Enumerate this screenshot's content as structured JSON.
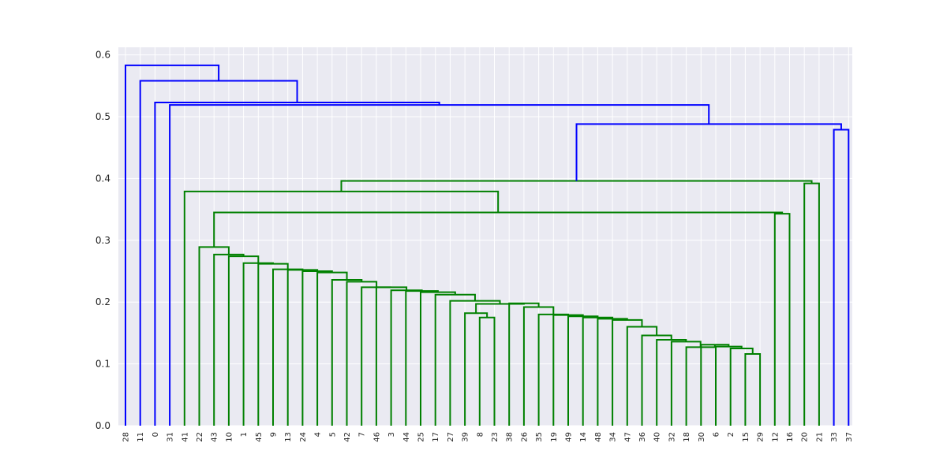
{
  "chart_data": {
    "type": "dendrogram",
    "title": "",
    "xlabel": "",
    "ylabel": "",
    "ylim": [
      0,
      0.61
    ],
    "yticks": [
      "0.0",
      "0.1",
      "0.2",
      "0.3",
      "0.4",
      "0.5",
      "0.6"
    ],
    "grid": true,
    "leaves": [
      "28",
      "11",
      "0",
      "31",
      "41",
      "22",
      "43",
      "10",
      "1",
      "45",
      "9",
      "13",
      "24",
      "4",
      "5",
      "42",
      "7",
      "46",
      "3",
      "44",
      "25",
      "17",
      "27",
      "39",
      "8",
      "23",
      "38",
      "26",
      "35",
      "19",
      "49",
      "14",
      "48",
      "34",
      "47",
      "36",
      "40",
      "32",
      "18",
      "30",
      "6",
      "2",
      "15",
      "29",
      "12",
      "16",
      "20",
      "21",
      "33",
      "37"
    ],
    "colors": {
      "green": "#008000",
      "blue": "#0000ff",
      "background": "#eaeaf2",
      "grid": "#ffffff"
    },
    "merges": [
      {
        "a": "29",
        "b": "15",
        "h": 0.116,
        "color": "green"
      },
      {
        "a": "N0",
        "b": "2",
        "h": 0.125,
        "color": "green"
      },
      {
        "a": "N1",
        "b": "6",
        "h": 0.128,
        "color": "green"
      },
      {
        "a": "N2",
        "b": "30",
        "h": 0.131,
        "color": "green"
      },
      {
        "a": "N3",
        "b": "18",
        "h": 0.127,
        "color": "green"
      },
      {
        "a": "N4",
        "b": "32",
        "h": 0.136,
        "color": "green"
      },
      {
        "a": "N5",
        "b": "40",
        "h": 0.139,
        "color": "green"
      },
      {
        "a": "N6",
        "b": "36",
        "h": 0.146,
        "color": "green"
      },
      {
        "a": "N7",
        "b": "47",
        "h": 0.16,
        "color": "green"
      },
      {
        "a": "N8",
        "b": "34",
        "h": 0.171,
        "color": "green"
      },
      {
        "a": "N9",
        "b": "48",
        "h": 0.173,
        "color": "green"
      },
      {
        "a": "N10",
        "b": "14",
        "h": 0.175,
        "color": "green"
      },
      {
        "a": "N11",
        "b": "49",
        "h": 0.177,
        "color": "green"
      },
      {
        "a": "N12",
        "b": "19",
        "h": 0.179,
        "color": "green"
      },
      {
        "a": "N13",
        "b": "35",
        "h": 0.18,
        "color": "green"
      },
      {
        "a": "N14",
        "b": "26",
        "h": 0.192,
        "color": "green"
      },
      {
        "a": "N15",
        "b": "38",
        "h": 0.198,
        "color": "green"
      },
      {
        "a": "23",
        "b": "8",
        "h": 0.175,
        "color": "green"
      },
      {
        "a": "N17",
        "b": "39",
        "h": 0.182,
        "color": "green"
      },
      {
        "a": "N16",
        "b": "N18",
        "h": 0.197,
        "color": "green"
      },
      {
        "a": "N19",
        "b": "27",
        "h": 0.202,
        "color": "green"
      },
      {
        "a": "N20",
        "b": "17",
        "h": 0.212,
        "color": "green"
      },
      {
        "a": "N21",
        "b": "25",
        "h": 0.216,
        "color": "green"
      },
      {
        "a": "N22",
        "b": "44",
        "h": 0.218,
        "color": "green"
      },
      {
        "a": "N23",
        "b": "3",
        "h": 0.219,
        "color": "green"
      },
      {
        "a": "N24",
        "b": "46",
        "h": 0.224,
        "color": "green"
      },
      {
        "a": "N25",
        "b": "7",
        "h": 0.224,
        "color": "green"
      },
      {
        "a": "N26",
        "b": "42",
        "h": 0.233,
        "color": "green"
      },
      {
        "a": "N27",
        "b": "5",
        "h": 0.236,
        "color": "green"
      },
      {
        "a": "N28",
        "b": "4",
        "h": 0.248,
        "color": "green"
      },
      {
        "a": "N29",
        "b": "24",
        "h": 0.25,
        "color": "green"
      },
      {
        "a": "N30",
        "b": "13",
        "h": 0.252,
        "color": "green"
      },
      {
        "a": "N31",
        "b": "9",
        "h": 0.253,
        "color": "green"
      },
      {
        "a": "N32",
        "b": "45",
        "h": 0.262,
        "color": "green"
      },
      {
        "a": "N33",
        "b": "1",
        "h": 0.263,
        "color": "green"
      },
      {
        "a": "N34",
        "b": "10",
        "h": 0.274,
        "color": "green"
      },
      {
        "a": "N35",
        "b": "43",
        "h": 0.277,
        "color": "green"
      },
      {
        "a": "N36",
        "b": "22",
        "h": 0.289,
        "color": "green"
      },
      {
        "a": "12",
        "b": "16",
        "h": 0.343,
        "color": "green"
      },
      {
        "a": "N37",
        "b": "N38",
        "h": 0.345,
        "color": "green"
      },
      {
        "a": "41",
        "b": "N39",
        "h": 0.379,
        "color": "green"
      },
      {
        "a": "20",
        "b": "21",
        "h": 0.392,
        "color": "green"
      },
      {
        "a": "N40",
        "b": "N41",
        "h": 0.396,
        "color": "green"
      },
      {
        "a": "33",
        "b": "37",
        "h": 0.479,
        "color": "blue"
      },
      {
        "a": "N42",
        "b": "N43",
        "h": 0.488,
        "color": "blue"
      },
      {
        "a": "31",
        "b": "N44",
        "h": 0.519,
        "color": "blue"
      },
      {
        "a": "0",
        "b": "N45",
        "h": 0.523,
        "color": "blue"
      },
      {
        "a": "11",
        "b": "N46",
        "h": 0.558,
        "color": "blue"
      },
      {
        "a": "28",
        "b": "N47",
        "h": 0.583,
        "color": "blue"
      }
    ]
  }
}
